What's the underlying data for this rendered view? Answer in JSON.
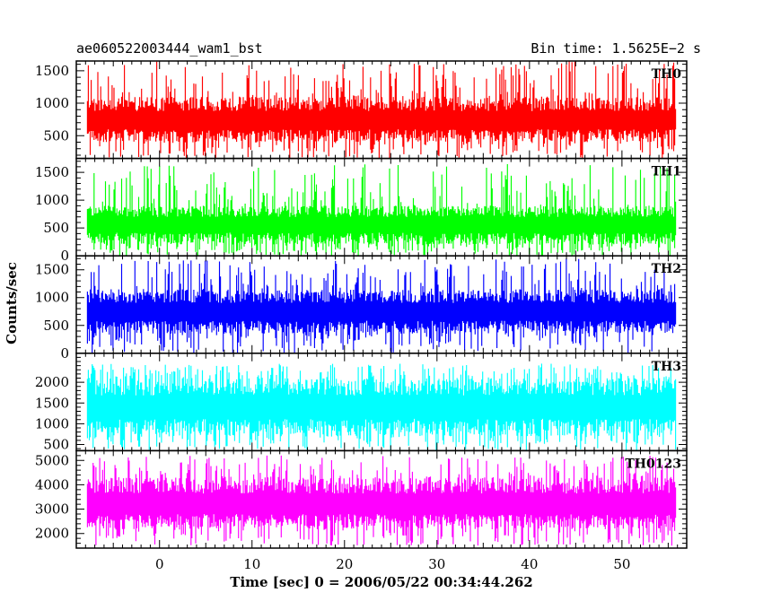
{
  "header": {
    "title": "ae060522003444_wam1_bst",
    "bin_time": "Bin time: 1.5625E−2 s"
  },
  "chart_data": {
    "type": "line",
    "xlabel": "Time [sec] 0 = 2006/05/22 00:34:44.262",
    "ylabel": "Counts/sec",
    "xlim": [
      -9,
      57
    ],
    "x_ticks": [
      0,
      10,
      20,
      30,
      40,
      50
    ],
    "data_x_range": [
      -7.8,
      55.8
    ],
    "panels": [
      {
        "name": "TH0",
        "color": "#ff0000",
        "ylim": [
          150,
          1650
        ],
        "y_ticks": [
          500,
          1000,
          1500
        ],
        "typical_range": [
          400,
          1100
        ],
        "peak_max": 1650,
        "dip_min": 150,
        "mean": 730
      },
      {
        "name": "TH1",
        "color": "#00ff00",
        "ylim": [
          0,
          1750
        ],
        "y_ticks": [
          0,
          500,
          1000,
          1500
        ],
        "typical_range": [
          200,
          900
        ],
        "peak_max": 1650,
        "dip_min": 0,
        "mean": 560
      },
      {
        "name": "TH2",
        "color": "#0000ff",
        "ylim": [
          0,
          1750
        ],
        "y_ticks": [
          0,
          500,
          1000,
          1500
        ],
        "typical_range": [
          350,
          1150
        ],
        "peak_max": 1700,
        "dip_min": 0,
        "mean": 740
      },
      {
        "name": "TH3",
        "color": "#00ffff",
        "ylim": [
          350,
          2700
        ],
        "y_ticks": [
          500,
          1000,
          1500,
          2000
        ],
        "typical_range": [
          700,
          2100
        ],
        "peak_max": 2450,
        "dip_min": 350,
        "mean": 1400
      },
      {
        "name": "TH0123",
        "color": "#ff00ff",
        "ylim": [
          1400,
          5400
        ],
        "y_ticks": [
          2000,
          3000,
          4000,
          5000
        ],
        "typical_range": [
          2200,
          4300
        ],
        "peak_max": 5200,
        "dip_min": 1500,
        "mean": 3200
      }
    ]
  }
}
